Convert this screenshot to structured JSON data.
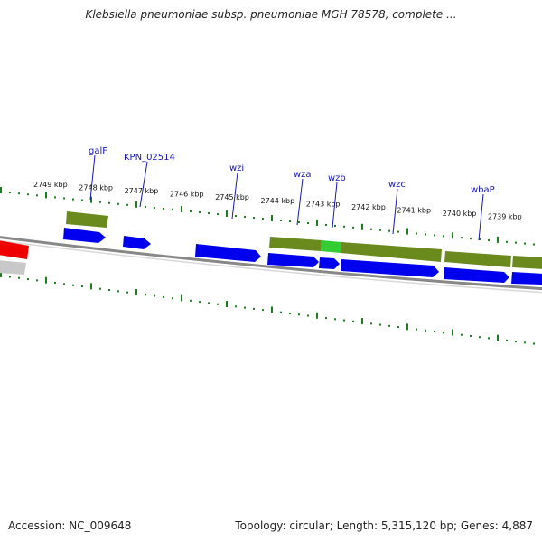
{
  "title": "Klebsiella pneumoniae subsp. pneumoniae MGH 78578, complete ...",
  "footer": {
    "accession": "Accession: NC_009648",
    "stats": "Topology: circular; Length: 5,315,120 bp; Genes: 4,887"
  },
  "colors": {
    "background": "#ffffff",
    "cds": "#0000ee",
    "gene_band": "#6b8a1e",
    "highlight": "#33cc33",
    "backbone": "#888888",
    "tick": "#1e7d1e",
    "label": "#1616b8",
    "red_feature": "#ee0000"
  },
  "ruler": {
    "unit": "kbp",
    "ticks": [
      2749,
      2748,
      2747,
      2746,
      2745,
      2744,
      2743,
      2742,
      2741,
      2740,
      2739
    ]
  },
  "gene_labels": [
    "galF",
    "KPN_02514",
    "wzi",
    "wza",
    "wzb",
    "wzc",
    "wbaP"
  ]
}
